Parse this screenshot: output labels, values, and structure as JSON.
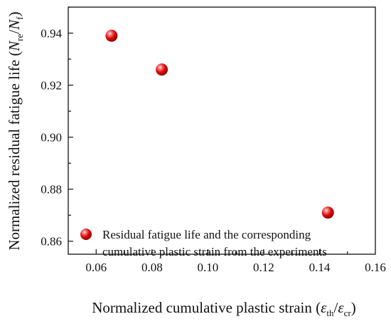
{
  "chart_data": {
    "type": "scatter",
    "xlabel_prefix": "Normalized cumulative plastic strain (",
    "xlabel_symbol_1": "ε",
    "xlabel_sub_1": "th",
    "xlabel_slash": "/",
    "xlabel_symbol_2": "ε",
    "xlabel_sub_2": "cr",
    "xlabel_suffix": ")",
    "ylabel_prefix": "Normalized residual fatigue life (",
    "ylabel_symbol_1": "N",
    "ylabel_sub_1": "re",
    "ylabel_slash": "/",
    "ylabel_symbol_2": "N",
    "ylabel_sub_2": "f",
    "ylabel_suffix": ")",
    "xlim": [
      0.05,
      0.16
    ],
    "ylim": [
      0.855,
      0.95
    ],
    "xticks": [
      0.06,
      0.08,
      0.1,
      0.12,
      0.14,
      0.16
    ],
    "xtick_labels": [
      "0.06",
      "0.08",
      "0.10",
      "0.12",
      "0.14",
      "0.16"
    ],
    "yticks": [
      0.86,
      0.88,
      0.9,
      0.92,
      0.94
    ],
    "ytick_labels": [
      "0.86",
      "0.88",
      "0.90",
      "0.92",
      "0.94"
    ],
    "grid": false,
    "legend_position": "bottom-right",
    "series": [
      {
        "name_line1": "Residual fatigue life and the corresponding",
        "name_line2": "cumulative plastic strain from the experiments",
        "color": "#e01010",
        "points": [
          {
            "x": 0.0655,
            "y": 0.939
          },
          {
            "x": 0.0835,
            "y": 0.926
          },
          {
            "x": 0.143,
            "y": 0.871
          }
        ]
      }
    ]
  }
}
